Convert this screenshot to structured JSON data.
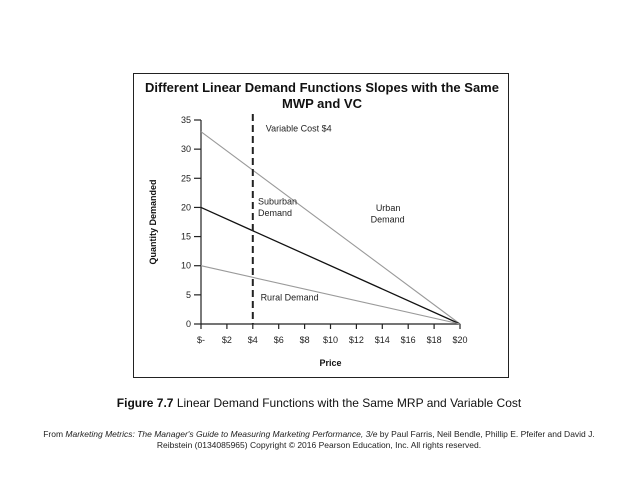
{
  "chart_data": {
    "type": "line",
    "title": "Different Linear Demand Functions Slopes with the Same MWP and VC",
    "xlabel": "Price",
    "ylabel": "Quantity Demanded",
    "xlim": [
      0,
      20
    ],
    "ylim": [
      0,
      35
    ],
    "x_ticks": [
      0,
      2,
      4,
      6,
      8,
      10,
      12,
      14,
      16,
      18,
      20
    ],
    "x_tick_labels": [
      "$-",
      "$2",
      "$4",
      "$6",
      "$8",
      "$10",
      "$12",
      "$14",
      "$16",
      "$18",
      "$20"
    ],
    "y_ticks": [
      0,
      5,
      10,
      15,
      20,
      25,
      30,
      35
    ],
    "y_tick_labels": [
      "0",
      "5",
      "10",
      "15",
      "20",
      "25",
      "30",
      "35"
    ],
    "grid": false,
    "legend": "none",
    "series": [
      {
        "name": "Urban Demand",
        "color": "#9a9a9a",
        "x": [
          0,
          20
        ],
        "y": [
          33,
          0
        ]
      },
      {
        "name": "Suburban Demand",
        "color": "#111111",
        "x": [
          0,
          20
        ],
        "y": [
          20,
          0
        ]
      },
      {
        "name": "Rural Demand",
        "color": "#9a9a9a",
        "x": [
          0,
          20
        ],
        "y": [
          10,
          0
        ]
      }
    ],
    "reference_line": {
      "label": "Variable Cost $4",
      "x": 4,
      "style": "dashed",
      "color": "#222222"
    },
    "annotations": [
      {
        "text": "Variable Cost $4",
        "x": 5,
        "y": 33
      },
      {
        "text": "Suburban",
        "x": 4.4,
        "y": 20.5
      },
      {
        "text": "Demand",
        "x": 4.4,
        "y": 18.5
      },
      {
        "text": "Urban",
        "x": 13.5,
        "y": 19.4
      },
      {
        "text": "Demand",
        "x": 13.1,
        "y": 17.4
      },
      {
        "text": "Rural Demand",
        "x": 4.6,
        "y": 4
      }
    ]
  },
  "caption": {
    "figure_number": "Figure 7.7",
    "text": "Linear Demand Functions with the Same MRP and Variable Cost"
  },
  "source": {
    "prefix": "From ",
    "book_title": "Marketing Metrics: The Manager's Guide to Measuring Marketing Performance, 3/e",
    "suffix": " by Paul Farris, Neil Bendle, Phillip E. Pfeifer and David J. Reibstein (0134085965) Copyright © 2016 Pearson Education, Inc. All rights reserved."
  }
}
